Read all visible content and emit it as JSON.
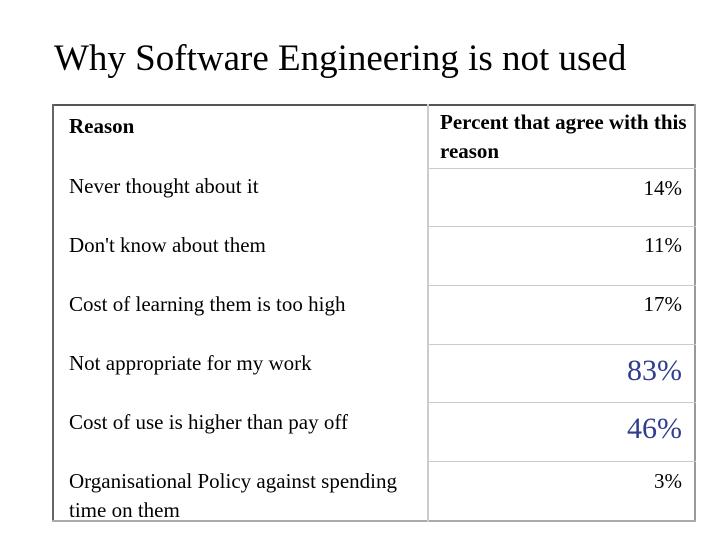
{
  "title": "Why Software Engineering is not used",
  "table": {
    "headers": {
      "reason": "Reason",
      "percent": "Percent that agree with this reason"
    },
    "rows": [
      {
        "reason": "Never thought about it",
        "percent": "14%"
      },
      {
        "reason": "Don't know about them",
        "percent": "11%"
      },
      {
        "reason": "Cost of learning them is too high",
        "percent": "17%"
      },
      {
        "reason": "Not appropriate for my work",
        "percent": "83%"
      },
      {
        "reason": "Cost of use is higher than pay off",
        "percent": "46%"
      },
      {
        "reason": "Organisational Policy against spending time on them",
        "percent": "3%"
      }
    ]
  },
  "colors": {
    "highlight": "#2f3d8c"
  }
}
